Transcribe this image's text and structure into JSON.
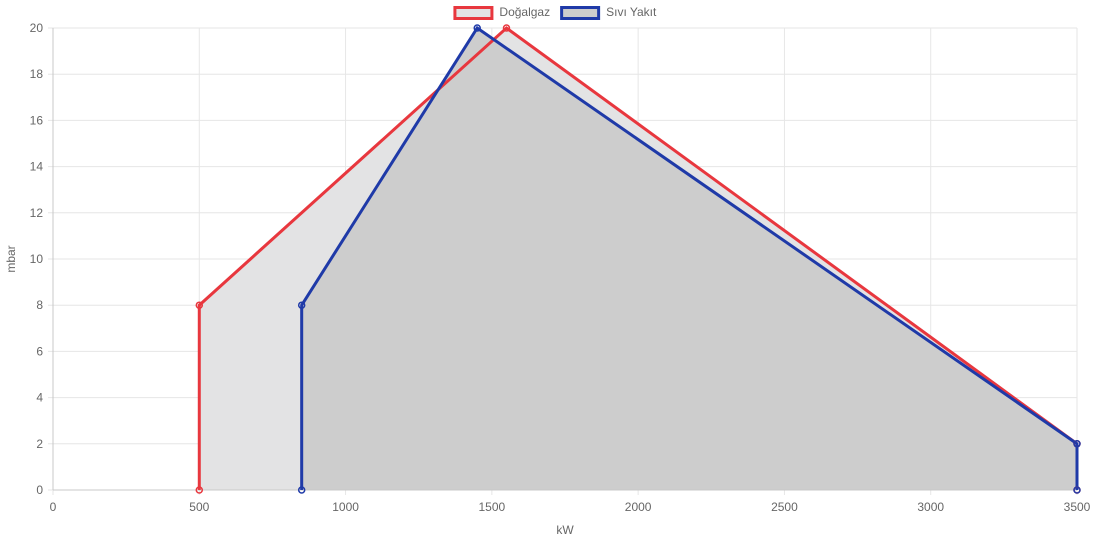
{
  "chart_data": {
    "type": "area",
    "xlabel": "kW",
    "ylabel": "mbar",
    "xlim": [
      0,
      3500
    ],
    "ylim": [
      0,
      20
    ],
    "x_ticks": [
      0,
      500,
      1000,
      1500,
      2000,
      2500,
      3000,
      3500
    ],
    "y_ticks": [
      0,
      2,
      4,
      6,
      8,
      10,
      12,
      14,
      16,
      18,
      20
    ],
    "grid": true,
    "legend_position": "top",
    "series": [
      {
        "name": "Doğalgaz",
        "color": "#e8373e",
        "fill": "#e3e3e4",
        "points": [
          {
            "x": 500,
            "y": 0
          },
          {
            "x": 500,
            "y": 8
          },
          {
            "x": 1550,
            "y": 20
          },
          {
            "x": 3500,
            "y": 2
          },
          {
            "x": 3500,
            "y": 0
          }
        ]
      },
      {
        "name": "Sıvı Yakıt",
        "color": "#1f3aa8",
        "fill": "#cdcdcd",
        "points": [
          {
            "x": 850,
            "y": 0
          },
          {
            "x": 850,
            "y": 8
          },
          {
            "x": 1450,
            "y": 20
          },
          {
            "x": 3500,
            "y": 2
          },
          {
            "x": 3500,
            "y": 0
          }
        ]
      }
    ]
  }
}
